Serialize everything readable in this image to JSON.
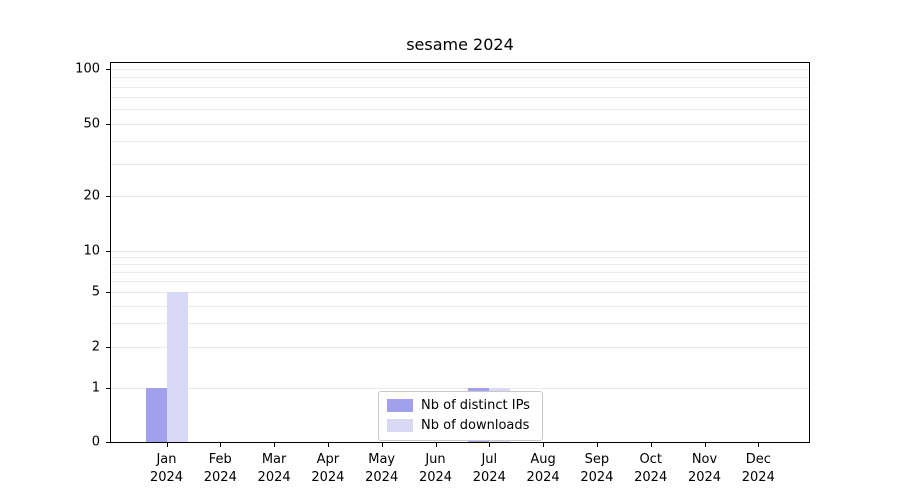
{
  "chart_data": {
    "type": "bar",
    "title": "sesame 2024",
    "months": [
      "Jan",
      "Feb",
      "Mar",
      "Apr",
      "May",
      "Jun",
      "Jul",
      "Aug",
      "Sep",
      "Oct",
      "Nov",
      "Dec"
    ],
    "year": "2024",
    "categories": [
      "Jan 2024",
      "Feb 2024",
      "Mar 2024",
      "Apr 2024",
      "May 2024",
      "Jun 2024",
      "Jul 2024",
      "Aug 2024",
      "Sep 2024",
      "Oct 2024",
      "Nov 2024",
      "Dec 2024"
    ],
    "series": [
      {
        "name": "Nb of distinct IPs",
        "color": "#a0a0ed",
        "values": [
          1,
          0,
          0,
          0,
          0,
          0,
          1,
          0,
          0,
          0,
          0,
          0
        ]
      },
      {
        "name": "Nb of downloads",
        "color": "#d9d9f6",
        "values": [
          5,
          0,
          0,
          0,
          0,
          0,
          1,
          0,
          0,
          0,
          0,
          0
        ]
      }
    ],
    "xlabel": "",
    "ylabel": "",
    "yscale": "symlog",
    "ylim": [
      0,
      110
    ],
    "yticks": [
      0,
      1,
      2,
      5,
      10,
      20,
      50,
      100
    ],
    "gridlines": [
      1,
      2,
      3,
      4,
      5,
      6,
      7,
      8,
      9,
      10,
      20,
      30,
      40,
      50,
      60,
      70,
      80,
      90,
      100
    ],
    "grid": true,
    "legend_position": "lower center"
  },
  "colors": {
    "grid": "#e9e9e9",
    "axis": "#000000",
    "legend_border": "#c9c9c9",
    "background": "#ffffff"
  }
}
